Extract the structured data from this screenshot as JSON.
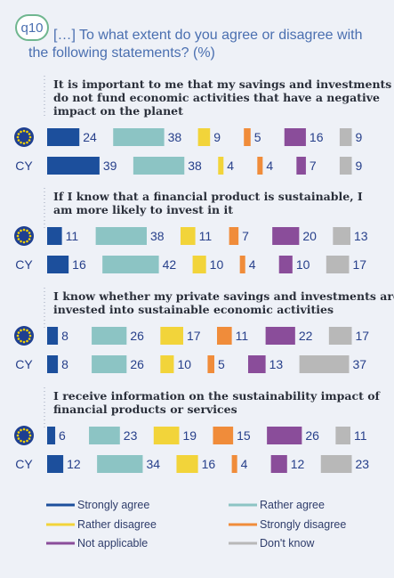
{
  "question": {
    "id": "q10",
    "text": "[…] To what extent do you agree or disagree with the following statements? (%)"
  },
  "colors": {
    "strongly_agree": "#1c4f9c",
    "rather_agree": "#8cc4c4",
    "rather_disagree": "#f2d43a",
    "strongly_disagree": "#f08c3a",
    "not_applicable": "#8a4d9a",
    "dont_know": "#b8b8b8",
    "eu_flag": "#1e3f91",
    "eu_stars": "#f5d200"
  },
  "chart_data": {
    "type": "bar",
    "stacked": true,
    "orientation": "horizontal",
    "unit": "%",
    "legend": [
      "Strongly agree",
      "Rather agree",
      "Rather disagree",
      "Strongly disagree",
      "Not applicable",
      "Don't know"
    ],
    "groups": [
      {
        "statement": "It is important to me that my savings and investments do not fund economic activities that have a negative impact on the planet",
        "rows": [
          {
            "label": "EU",
            "values": [
              24,
              38,
              9,
              5,
              16,
              9
            ]
          },
          {
            "label": "CY",
            "values": [
              39,
              38,
              4,
              4,
              7,
              9
            ]
          }
        ]
      },
      {
        "statement": "If I know that a financial product is sustainable, I am more likely to invest in it",
        "rows": [
          {
            "label": "EU",
            "values": [
              11,
              38,
              11,
              7,
              20,
              13
            ]
          },
          {
            "label": "CY",
            "values": [
              16,
              42,
              10,
              4,
              10,
              17
            ]
          }
        ]
      },
      {
        "statement": "I know whether my private savings and investments are invested into sustainable economic activities",
        "rows": [
          {
            "label": "EU",
            "values": [
              8,
              26,
              17,
              11,
              22,
              17
            ]
          },
          {
            "label": "CY",
            "values": [
              8,
              26,
              10,
              5,
              13,
              37
            ]
          }
        ]
      },
      {
        "statement": "I receive information on the sustainability impact of financial products or services",
        "rows": [
          {
            "label": "EU",
            "values": [
              6,
              23,
              19,
              15,
              26,
              11
            ]
          },
          {
            "label": "CY",
            "values": [
              12,
              34,
              16,
              4,
              12,
              23
            ]
          }
        ]
      }
    ]
  }
}
